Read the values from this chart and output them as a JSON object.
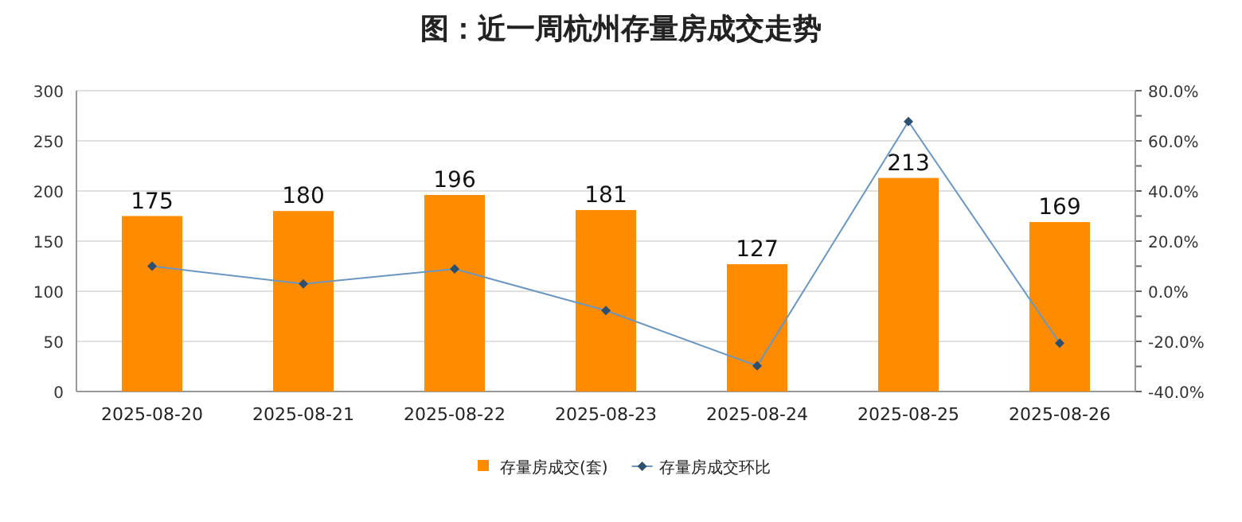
{
  "chart_data": {
    "type": "bar",
    "title": "图：近一周杭州存量房成交走势",
    "categories": [
      "2025-08-20",
      "2025-08-21",
      "2025-08-22",
      "2025-08-23",
      "2025-08-24",
      "2025-08-25",
      "2025-08-26"
    ],
    "series": [
      {
        "name": "存量房成交(套)",
        "color": "#ff8c00",
        "values": [
          175,
          180,
          196,
          181,
          127,
          213,
          169
        ],
        "value_labels": [
          "175",
          "180",
          "196",
          "181",
          "127",
          "213",
          "169"
        ]
      },
      {
        "name": "存量房成交环比",
        "type": "line",
        "axis": "y2",
        "color": "#6b96c0",
        "marker": "diamond",
        "values": [
          10.0,
          2.9,
          8.9,
          -7.7,
          -29.8,
          67.7,
          -20.7
        ]
      }
    ],
    "ylim": [
      0,
      300
    ],
    "yticks": [
      0,
      50,
      100,
      150,
      200,
      250,
      300
    ],
    "y2lim": [
      -40,
      80
    ],
    "y2ticks": [
      {
        "value": -40,
        "label": "-40.0%"
      },
      {
        "value": -30,
        "label": null
      },
      {
        "value": -20,
        "label": "-20.0%"
      },
      {
        "value": -10,
        "label": null
      },
      {
        "value": 0,
        "label": "0.0%"
      },
      {
        "value": 10,
        "label": null
      },
      {
        "value": 20,
        "label": "20.0%"
      },
      {
        "value": 30,
        "label": null
      },
      {
        "value": 40,
        "label": "40.0%"
      },
      {
        "value": 50,
        "label": null
      },
      {
        "value": 60,
        "label": "60.0%"
      },
      {
        "value": 70,
        "label": null
      },
      {
        "value": 80,
        "label": "80.0%"
      }
    ],
    "grid": "y",
    "legend": "bottom"
  }
}
